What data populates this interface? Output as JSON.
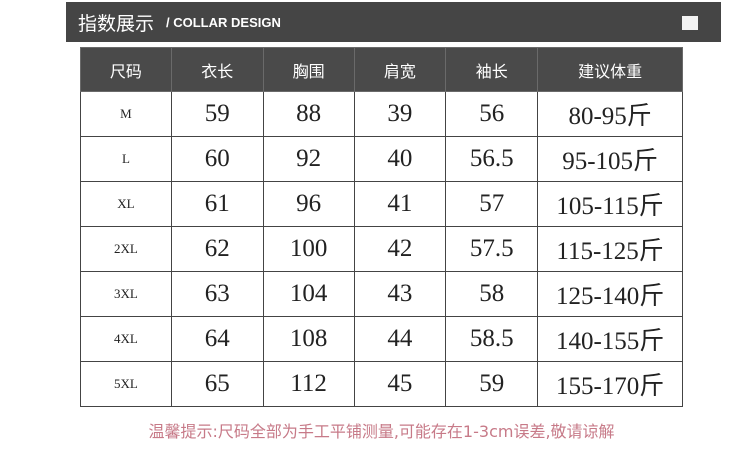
{
  "title": {
    "cn": "指数展示",
    "en": "/ COLLAR DESIGN"
  },
  "table": {
    "headers": [
      "尺码",
      "衣长",
      "胸围",
      "肩宽",
      "袖长",
      "建议体重"
    ],
    "rows": [
      [
        "M",
        "59",
        "88",
        "39",
        "56",
        "80-95斤"
      ],
      [
        "L",
        "60",
        "92",
        "40",
        "56.5",
        "95-105斤"
      ],
      [
        "XL",
        "61",
        "96",
        "41",
        "57",
        "105-115斤"
      ],
      [
        "2XL",
        "62",
        "100",
        "42",
        "57.5",
        "115-125斤"
      ],
      [
        "3XL",
        "63",
        "104",
        "43",
        "58",
        "125-140斤"
      ],
      [
        "4XL",
        "64",
        "108",
        "44",
        "58.5",
        "140-155斤"
      ],
      [
        "5XL",
        "65",
        "112",
        "45",
        "59",
        "155-170斤"
      ]
    ]
  },
  "note": "温馨提示:尺码全部为手工平铺测量,可能存在1-3cm误差,敬请谅解",
  "colors": {
    "header_bg": "#454545",
    "note": "#c77a88"
  }
}
